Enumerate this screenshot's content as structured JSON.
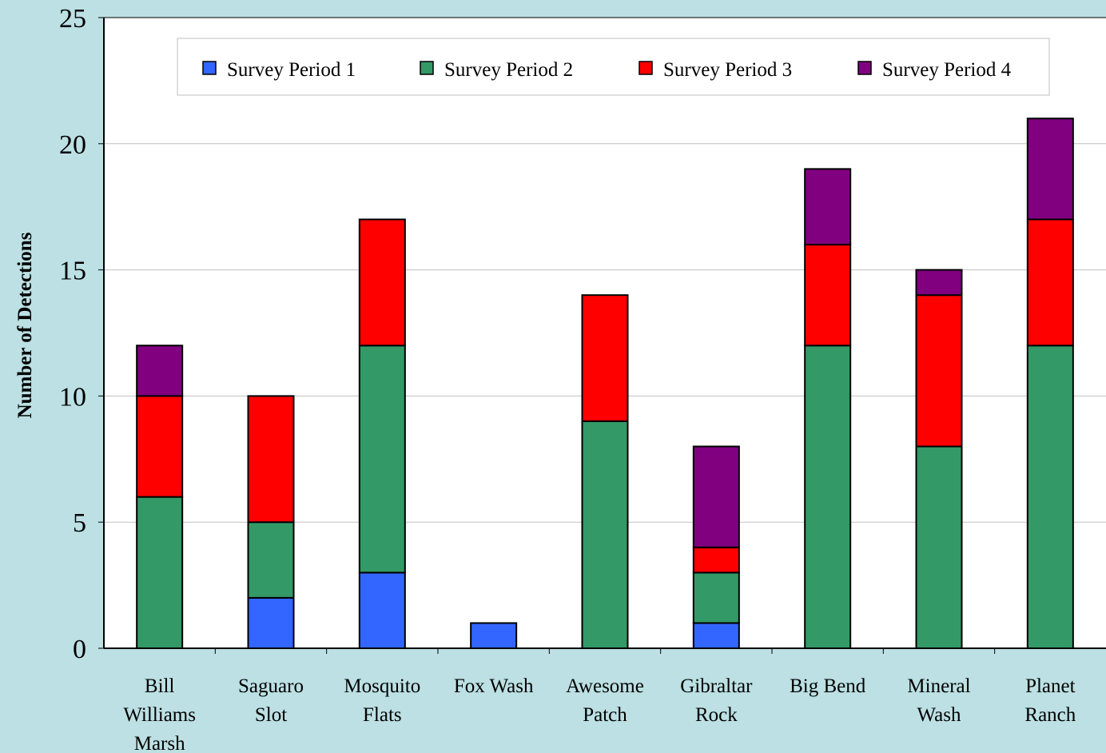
{
  "chart_data": {
    "type": "bar",
    "stacked": true,
    "title": "",
    "xlabel": "",
    "ylabel": "Number of Detections",
    "ylim": [
      0,
      25
    ],
    "yticks": [
      0,
      5,
      10,
      15,
      20,
      25
    ],
    "grid": true,
    "legend_position": "top",
    "categories": [
      [
        "Bill",
        "Williams",
        "Marsh"
      ],
      [
        "Saguaro",
        "Slot"
      ],
      [
        "Mosquito",
        "Flats"
      ],
      [
        "Fox Wash"
      ],
      [
        "Awesome",
        "Patch"
      ],
      [
        "Gibraltar",
        "Rock"
      ],
      [
        "Big Bend"
      ],
      [
        "Mineral",
        "Wash"
      ],
      [
        "Planet",
        "Ranch"
      ]
    ],
    "series": [
      {
        "name": "Survey Period 1",
        "color": "#3366ff",
        "values": [
          0,
          2,
          3,
          1,
          0,
          1,
          0,
          0,
          0
        ]
      },
      {
        "name": "Survey Period 2",
        "color": "#339966",
        "values": [
          6,
          3,
          9,
          0,
          9,
          2,
          12,
          8,
          12
        ]
      },
      {
        "name": "Survey Period 3",
        "color": "#ff0000",
        "values": [
          4,
          5,
          5,
          0,
          5,
          1,
          4,
          6,
          5
        ]
      },
      {
        "name": "Survey Period 4",
        "color": "#800080",
        "values": [
          2,
          0,
          0,
          0,
          0,
          4,
          3,
          1,
          4
        ]
      }
    ],
    "colors": {
      "plot_background": "#ffffff",
      "page_background": "#bce0e3",
      "gridline": "#c0c0c0",
      "axis": "#000000"
    }
  }
}
